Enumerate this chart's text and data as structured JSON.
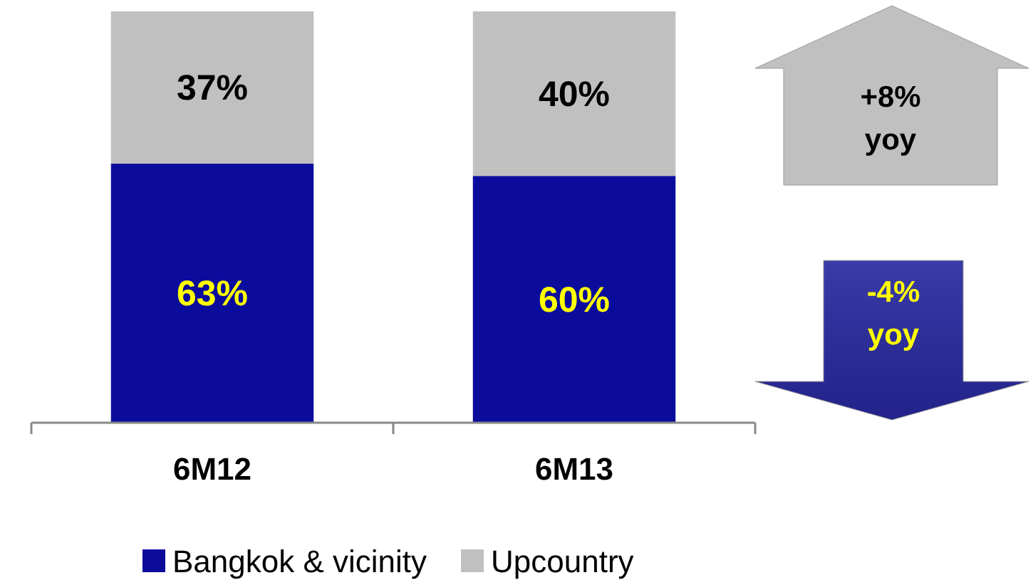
{
  "chart_data": {
    "type": "bar",
    "stacked": true,
    "categories": [
      "6M12",
      "6M13"
    ],
    "series": [
      {
        "name": "Bangkok & vicinity",
        "color": "#0c0c9c",
        "values": [
          63,
          60
        ],
        "value_labels": [
          "63%",
          "60%"
        ]
      },
      {
        "name": "Upcountry",
        "color": "#c0c0c0",
        "values": [
          37,
          40
        ],
        "value_labels": [
          "37%",
          "40%"
        ]
      }
    ],
    "annotations": [
      "+8% yoy",
      "-4% yoy"
    ],
    "legend": "bottom",
    "tick_labels": "x"
  }
}
